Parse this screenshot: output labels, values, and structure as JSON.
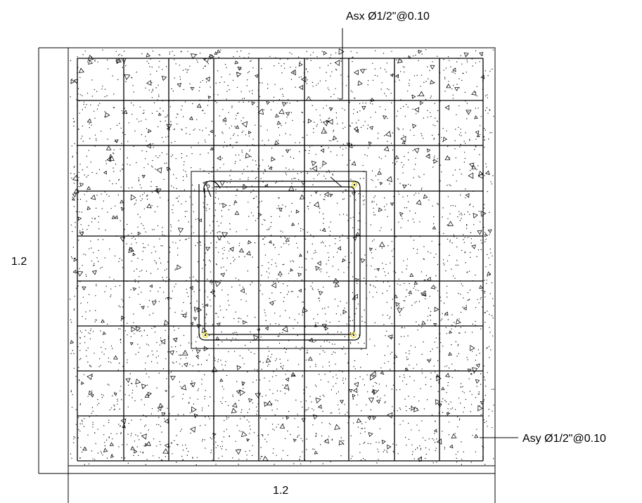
{
  "labels": {
    "asx": "Asx Ø1/2\"@0.10",
    "asy": "Asy Ø1/2\"@0.10",
    "dim_height": "1.2",
    "dim_width": "1.2"
  },
  "colors": {
    "line": "#000000",
    "corner_marker": "#e8d800",
    "background": "#ffffff"
  }
}
